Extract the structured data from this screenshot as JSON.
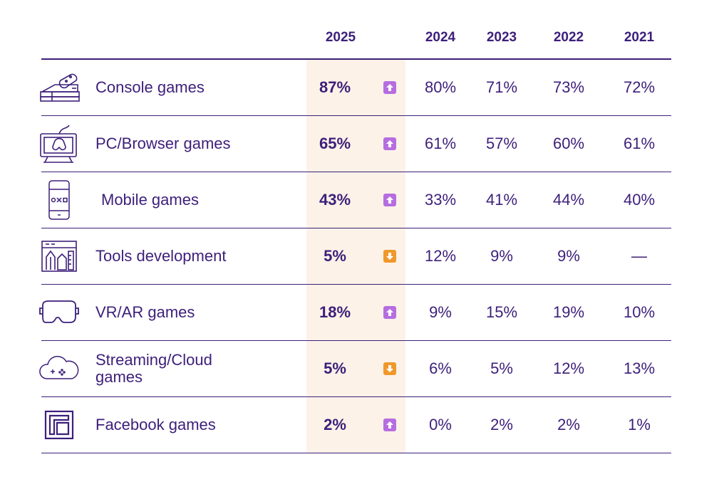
{
  "headers": [
    "2025",
    "2024",
    "2023",
    "2022",
    "2021"
  ],
  "colors": {
    "text": "#3d1f7a",
    "highlight": "#fdf2e8",
    "up": "#b66de0",
    "down": "#f0982a"
  },
  "rows": [
    {
      "icon": "console-icon",
      "label": "Console games",
      "v2025": "87%",
      "trend": "up",
      "values": [
        "80%",
        "71%",
        "73%",
        "72%"
      ]
    },
    {
      "icon": "pc-gamepad-icon",
      "label": "PC/Browser games",
      "v2025": "65%",
      "trend": "up",
      "values": [
        "61%",
        "57%",
        "60%",
        "61%"
      ]
    },
    {
      "icon": "mobile-phone-icon",
      "label": "Mobile games",
      "v2025": "43%",
      "trend": "up",
      "values": [
        "33%",
        "41%",
        "44%",
        "40%"
      ]
    },
    {
      "icon": "tools-icon",
      "label": "Tools development",
      "v2025": "5%",
      "trend": "down",
      "values": [
        "12%",
        "9%",
        "9%",
        "—"
      ]
    },
    {
      "icon": "vr-headset-icon",
      "label": "VR/AR games",
      "v2025": "18%",
      "trend": "up",
      "values": [
        "9%",
        "15%",
        "19%",
        "10%"
      ]
    },
    {
      "icon": "cloud-icon",
      "label": "Streaming/Cloud games",
      "v2025": "5%",
      "trend": "down",
      "values": [
        "6%",
        "5%",
        "12%",
        "13%"
      ]
    },
    {
      "icon": "facebook-games-icon",
      "label": "Facebook games",
      "v2025": "2%",
      "trend": "up",
      "values": [
        "0%",
        "2%",
        "2%",
        "1%"
      ]
    }
  ],
  "chart_data": {
    "type": "table",
    "columns": [
      "2025",
      "2024",
      "2023",
      "2022",
      "2021"
    ],
    "categories": [
      "Console games",
      "PC/Browser games",
      "Mobile games",
      "Tools development",
      "VR/AR games",
      "Streaming/Cloud games",
      "Facebook games"
    ],
    "series": [
      {
        "name": "2025",
        "values": [
          87,
          65,
          43,
          5,
          18,
          5,
          2
        ]
      },
      {
        "name": "2024",
        "values": [
          80,
          61,
          33,
          12,
          9,
          6,
          0
        ]
      },
      {
        "name": "2023",
        "values": [
          71,
          57,
          41,
          9,
          15,
          5,
          2
        ]
      },
      {
        "name": "2022",
        "values": [
          73,
          60,
          44,
          9,
          19,
          12,
          2
        ]
      },
      {
        "name": "2021",
        "values": [
          72,
          61,
          40,
          null,
          10,
          13,
          1
        ]
      }
    ],
    "trend_2025": [
      "up",
      "up",
      "up",
      "down",
      "up",
      "down",
      "up"
    ]
  }
}
